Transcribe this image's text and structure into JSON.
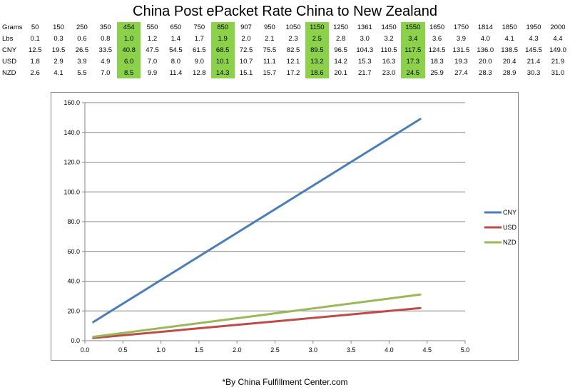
{
  "title": "China Post ePacket Rate China to New Zealand",
  "footnote": "*By China Fulfillment Center.com",
  "rate_table": {
    "highlight_color": "#8cd14a",
    "highlighted_columns": [
      4,
      8,
      12,
      16
    ],
    "rows": [
      {
        "label": "Grams",
        "values": [
          "50",
          "150",
          "250",
          "350",
          "454",
          "550",
          "650",
          "750",
          "850",
          "907",
          "950",
          "1050",
          "1150",
          "1250",
          "1361",
          "1450",
          "1550",
          "1650",
          "1750",
          "1814",
          "1850",
          "1950",
          "2000"
        ]
      },
      {
        "label": "Lbs",
        "values": [
          "0.1",
          "0.3",
          "0.6",
          "0.8",
          "1.0",
          "1.2",
          "1.4",
          "1.7",
          "1.9",
          "2.0",
          "2.1",
          "2.3",
          "2.5",
          "2.8",
          "3.0",
          "3.2",
          "3.4",
          "3.6",
          "3.9",
          "4.0",
          "4.1",
          "4.3",
          "4.4"
        ]
      },
      {
        "label": "CNY",
        "values": [
          "12.5",
          "19.5",
          "26.5",
          "33.5",
          "40.8",
          "47.5",
          "54.5",
          "61.5",
          "68.5",
          "72.5",
          "75.5",
          "82.5",
          "89.5",
          "96.5",
          "104.3",
          "110.5",
          "117.5",
          "124.5",
          "131.5",
          "136.0",
          "138.5",
          "145.5",
          "149.0"
        ]
      },
      {
        "label": "USD",
        "values": [
          "1.8",
          "2.9",
          "3.9",
          "4.9",
          "6.0",
          "7.0",
          "8.0",
          "9.0",
          "10.1",
          "10.7",
          "11.1",
          "12.1",
          "13.2",
          "14.2",
          "15.3",
          "16.3",
          "17.3",
          "18.3",
          "19.3",
          "20.0",
          "20.4",
          "21.4",
          "21.9"
        ]
      },
      {
        "label": "NZD",
        "values": [
          "2.6",
          "4.1",
          "5.5",
          "7.0",
          "8.5",
          "9.9",
          "11.4",
          "12.8",
          "14.3",
          "15.1",
          "15.7",
          "17.2",
          "18.6",
          "20.1",
          "21.7",
          "23.0",
          "24.5",
          "25.9",
          "27.4",
          "28.3",
          "28.9",
          "30.3",
          "31.0"
        ]
      }
    ]
  },
  "chart_data": {
    "type": "line",
    "x": [
      0.1,
      4.4
    ],
    "series": [
      {
        "name": "CNY",
        "color": "#4a7ebb",
        "x": [
          0.11,
          4.41
        ],
        "values": [
          12.5,
          149.0
        ]
      },
      {
        "name": "USD",
        "color": "#be4b48",
        "x": [
          0.11,
          4.41
        ],
        "values": [
          1.8,
          21.9
        ]
      },
      {
        "name": "NZD",
        "color": "#98b954",
        "x": [
          0.11,
          4.41
        ],
        "values": [
          2.6,
          31.0
        ]
      }
    ],
    "xlim": [
      0.0,
      5.0
    ],
    "ylim": [
      0.0,
      160.0
    ],
    "x_ticks": [
      "0.0",
      "0.5",
      "1.0",
      "1.5",
      "2.0",
      "2.5",
      "3.0",
      "3.5",
      "4.0",
      "4.5",
      "5.0"
    ],
    "y_ticks": [
      "0.0",
      "20.0",
      "40.0",
      "60.0",
      "80.0",
      "100.0",
      "120.0",
      "140.0",
      "160.0"
    ],
    "grid": "horizontal",
    "legend_position": "right",
    "title": "",
    "xlabel": "",
    "ylabel": ""
  }
}
